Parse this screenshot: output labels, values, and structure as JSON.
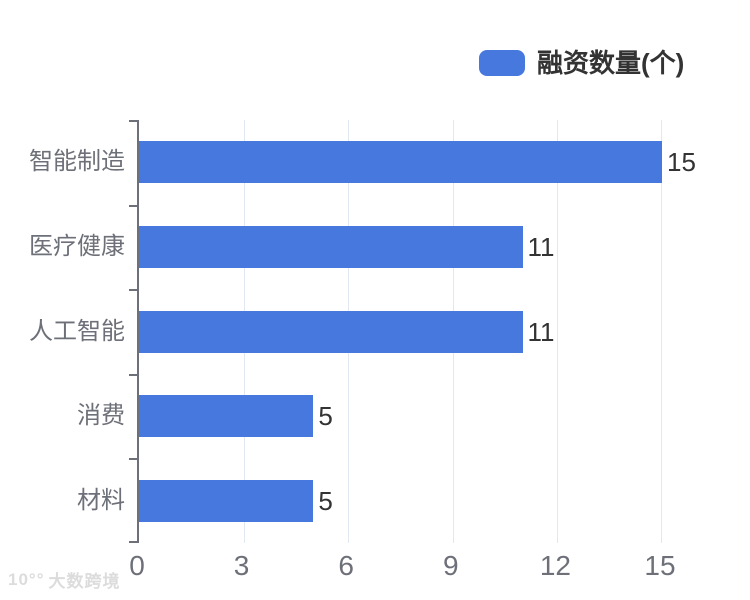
{
  "legend": {
    "label": "融资数量(个)"
  },
  "watermark": {
    "icon": "10°°",
    "text": "大数跨境"
  },
  "colors": {
    "bar": "#4678DE",
    "axis": "#6E7079",
    "grid": "#E2E8F2",
    "muted": "#6E7079",
    "dark": "#333333",
    "watermark": "#DCDCDC",
    "background": "#FFFFFF"
  },
  "chart_data": {
    "type": "bar",
    "orientation": "horizontal",
    "title": "",
    "xlabel": "",
    "ylabel": "",
    "series_name": "融资数量(个)",
    "categories": [
      "智能制造",
      "医疗健康",
      "人工智能",
      "消费",
      "材料"
    ],
    "values": [
      15,
      11,
      11,
      5,
      5
    ],
    "x_ticks": [
      0,
      3,
      6,
      9,
      12,
      15
    ],
    "xlim": [
      0,
      15
    ],
    "grid": true,
    "value_labels": true,
    "legend_position": "top-right"
  }
}
